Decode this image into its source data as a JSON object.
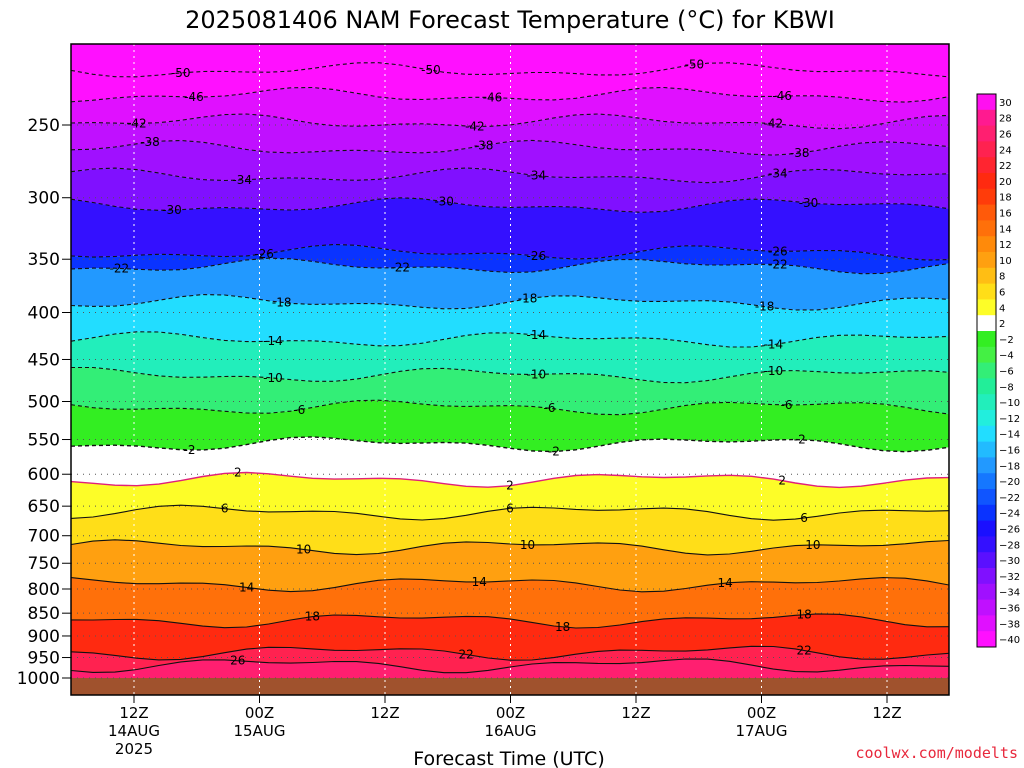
{
  "chart_data": {
    "type": "heatmap",
    "title": "2025081406 NAM Forecast Temperature (°C) for KBWI",
    "xlabel": "Forecast Time (UTC)",
    "credit": "coolwx.com/modelts",
    "y_axis": {
      "ticks": [
        250,
        300,
        350,
        400,
        450,
        500,
        550,
        600,
        650,
        700,
        750,
        800,
        850,
        900,
        950,
        1000
      ]
    },
    "x_axis": {
      "ticks": [
        {
          "line1": "12Z",
          "line2": "14AUG",
          "line3": "2025"
        },
        {
          "line1": "00Z",
          "line2": "15AUG",
          "line3": ""
        },
        {
          "line1": "12Z",
          "line2": "",
          "line3": ""
        },
        {
          "line1": "00Z",
          "line2": "16AUG",
          "line3": ""
        },
        {
          "line1": "12Z",
          "line2": "",
          "line3": ""
        },
        {
          "line1": "00Z",
          "line2": "17AUG",
          "line3": ""
        },
        {
          "line1": "12Z",
          "line2": "",
          "line3": ""
        }
      ]
    },
    "colorbar": {
      "labels": [
        "30",
        "28",
        "26",
        "24",
        "22",
        "20",
        "18",
        "16",
        "14",
        "12",
        "10",
        "8",
        "6",
        "4",
        "2",
        "−2",
        "−4",
        "−6",
        "−8",
        "−10",
        "−12",
        "−14",
        "−16",
        "−18",
        "−20",
        "−22",
        "−24",
        "−26",
        "−28",
        "−30",
        "−32",
        "−34",
        "−36",
        "−38",
        "−40"
      ],
      "colors": [
        "#ff10f0",
        "#ff1a90",
        "#ff1f70",
        "#ff2250",
        "#ff2530",
        "#ff2a10",
        "#ff3c0a",
        "#ff5a0a",
        "#ff700a",
        "#ff8a0a",
        "#ffa010",
        "#ffbe14",
        "#ffde18",
        "#fdfd28",
        "#ffffff",
        "#33ee22",
        "#44f044",
        "#33ee77",
        "#22ee99",
        "#22eebb",
        "#22eedd",
        "#22ddff",
        "#22bbff",
        "#2299ff",
        "#1577ff",
        "#1055ff",
        "#0a33ff",
        "#1a10ff",
        "#3410ff",
        "#5a10ff",
        "#8010ff",
        "#a010ff",
        "#c010ff",
        "#e010ff",
        "#ff10ff"
      ]
    },
    "contours": [
      {
        "label": "-50",
        "p": 218,
        "label_t": [
          0.125,
          0.41,
          0.71
        ]
      },
      {
        "label": "-46",
        "p": 232,
        "label_t": [
          0.14,
          0.48,
          0.81
        ]
      },
      {
        "label": "-42",
        "p": 248,
        "label_t": [
          0.075,
          0.46,
          0.8
        ]
      },
      {
        "label": "-38",
        "p": 265,
        "label_t": [
          0.09,
          0.47,
          0.83
        ]
      },
      {
        "label": "-34",
        "p": 284,
        "label_t": [
          0.195,
          0.53,
          0.805
        ]
      },
      {
        "label": "-30",
        "p": 306,
        "label_t": [
          0.115,
          0.425,
          0.84
        ]
      },
      {
        "label": "-26",
        "p": 344,
        "label_t": [
          0.22,
          0.53,
          0.805
        ]
      },
      {
        "label": "-22",
        "p": 356,
        "label_t": [
          0.055,
          0.375,
          0.805
        ]
      },
      {
        "label": "-18",
        "p": 390,
        "label_t": [
          0.24,
          0.52,
          0.79
        ]
      },
      {
        "label": "-14",
        "p": 428,
        "label_t": [
          0.23,
          0.53,
          0.8
        ]
      },
      {
        "label": "-10",
        "p": 468,
        "label_t": [
          0.23,
          0.53,
          0.8
        ]
      },
      {
        "label": "-6",
        "p": 507,
        "label_t": [
          0.26,
          0.545,
          0.815
        ]
      },
      {
        "label": "-2",
        "p": 556,
        "label_t": [
          0.135,
          0.55,
          0.83
        ]
      },
      {
        "label": "2",
        "p": 608,
        "label_t": [
          0.19,
          0.5,
          0.81
        ]
      },
      {
        "label": "6",
        "p": 660,
        "label_t": [
          0.175,
          0.5,
          0.835
        ]
      },
      {
        "label": "10",
        "p": 720,
        "label_t": [
          0.265,
          0.52,
          0.845
        ]
      },
      {
        "label": "14",
        "p": 790,
        "label_t": [
          0.2,
          0.465,
          0.745
        ]
      },
      {
        "label": "18",
        "p": 865,
        "label_t": [
          0.275,
          0.56,
          0.835
        ]
      },
      {
        "label": "22",
        "p": 938,
        "label_t": [
          0.45,
          0.835
        ]
      },
      {
        "label": "26",
        "p": 968,
        "label_t": [
          0.19
        ]
      }
    ]
  }
}
